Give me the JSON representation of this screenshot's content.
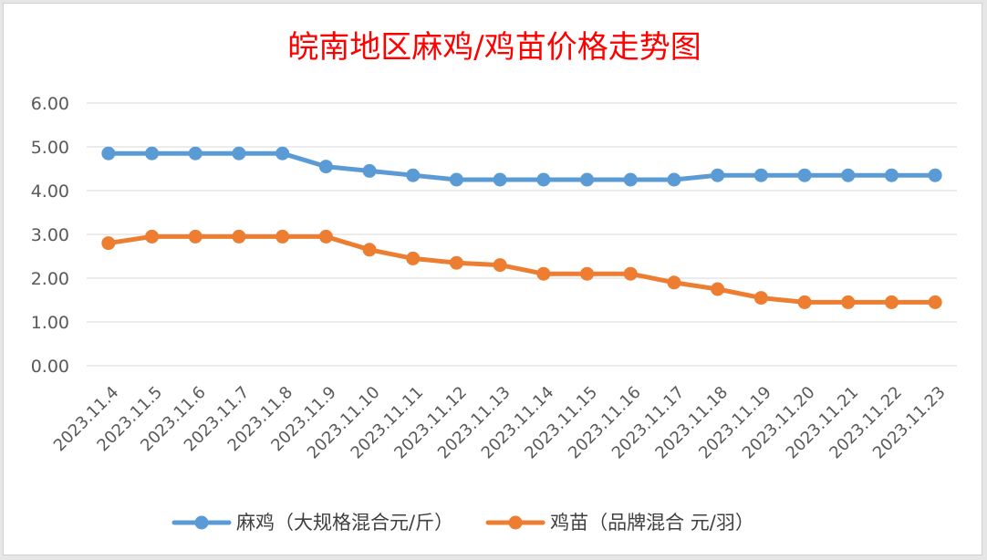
{
  "chart_data": {
    "type": "line",
    "title": "皖南地区麻鸡/鸡苗价格走势图",
    "xlabel": "",
    "ylabel": "",
    "ylim": [
      0,
      6
    ],
    "yticks": [
      "0.00",
      "1.00",
      "2.00",
      "3.00",
      "4.00",
      "5.00",
      "6.00"
    ],
    "categories": [
      "2023.11.4",
      "2023.11.5",
      "2023.11.6",
      "2023.11.7",
      "2023.11.8",
      "2023.11.9",
      "2023.11.10",
      "2023.11.11",
      "2023.11.12",
      "2023.11.13",
      "2023.11.14",
      "2023.11.15",
      "2023.11.16",
      "2023.11.17",
      "2023.11.18",
      "2023.11.19",
      "2023.11.20",
      "2023.11.21",
      "2023.11.22",
      "2023.11.23"
    ],
    "series": [
      {
        "name": "麻鸡（大规格混合元/斤）",
        "color": "#5b9bd5",
        "values": [
          4.85,
          4.85,
          4.85,
          4.85,
          4.85,
          4.55,
          4.45,
          4.35,
          4.25,
          4.25,
          4.25,
          4.25,
          4.25,
          4.25,
          4.35,
          4.35,
          4.35,
          4.35,
          4.35,
          4.35
        ]
      },
      {
        "name": "鸡苗（品牌混合 元/羽）",
        "color": "#ed7d31",
        "values": [
          2.8,
          2.95,
          2.95,
          2.95,
          2.95,
          2.95,
          2.65,
          2.45,
          2.35,
          2.3,
          2.1,
          2.1,
          2.1,
          1.9,
          1.75,
          1.55,
          1.45,
          1.45,
          1.45,
          1.45
        ]
      }
    ],
    "grid": true,
    "legend_position": "bottom"
  }
}
